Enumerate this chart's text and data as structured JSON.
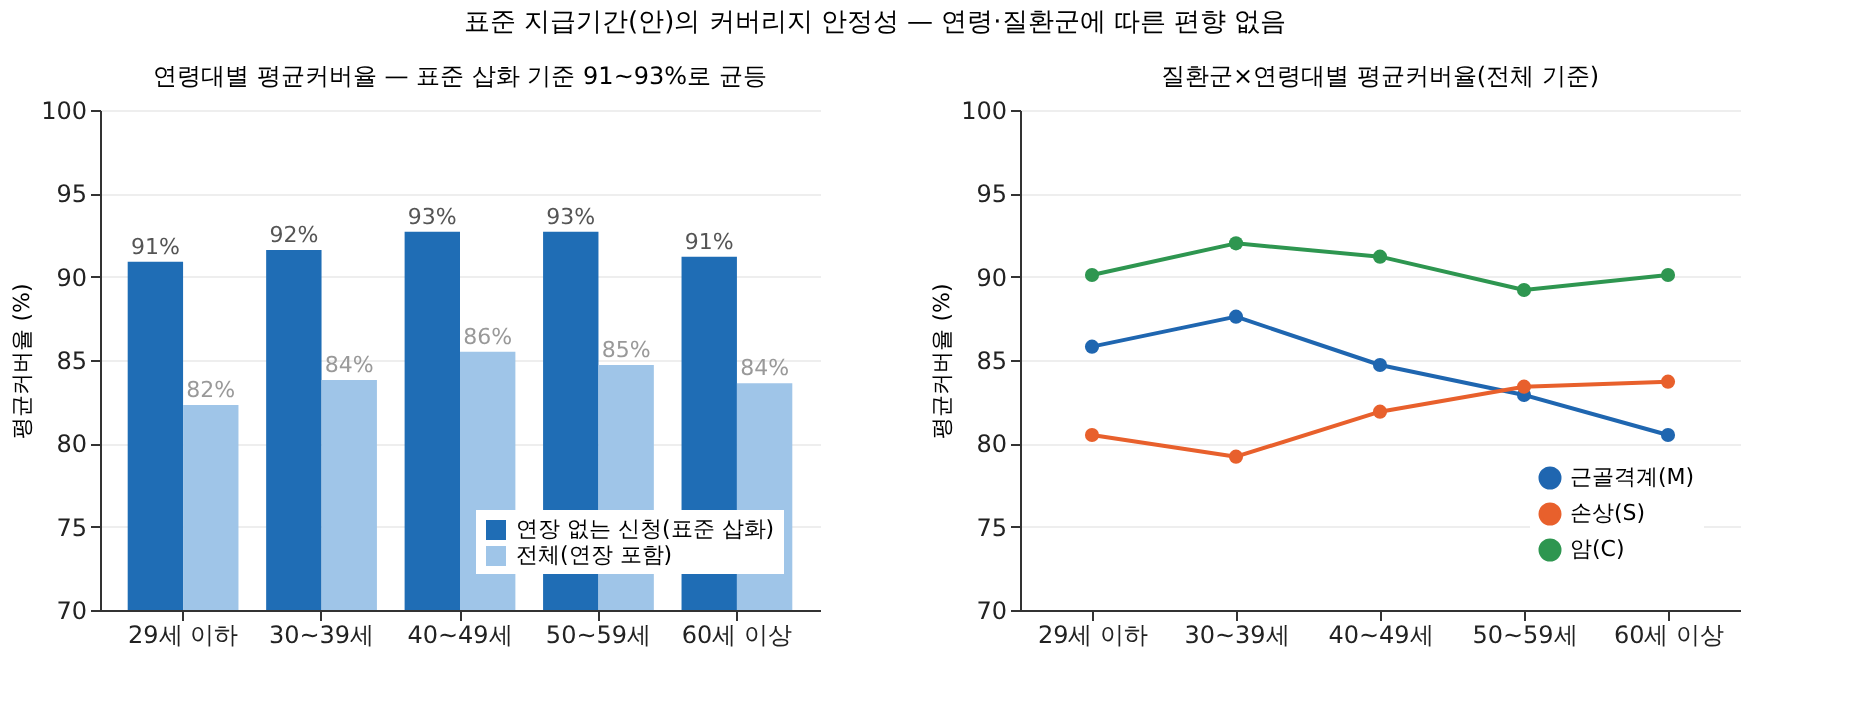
{
  "chart_data": [
    {
      "type": "bar",
      "title": "연령대별 평균커버율 — 표준 삽화 기준 91~93%로 균등",
      "ylabel": "평균커버율 (%)",
      "annotations": [
        "표준 지급기간(안)의 커버리지 안정성 — 연령·질환군에 따른 편향 없음"
      ],
      "categories": [
        "29세 이하",
        "30~39세",
        "40~49세",
        "50~59세",
        "60세 이상"
      ],
      "series": [
        {
          "name": "연장 없는 신청(표준 삽화)",
          "color": "#1f6db5",
          "values": [
            90.9,
            91.6,
            92.7,
            92.7,
            91.2
          ],
          "value_labels": [
            "91%",
            "92%",
            "93%",
            "93%",
            "91%"
          ]
        },
        {
          "name": "전체(연장 포함)",
          "color": "#9fc5e8",
          "values": [
            82.3,
            83.8,
            85.5,
            84.7,
            83.6
          ],
          "value_labels": [
            "82%",
            "84%",
            "86%",
            "85%",
            "84%"
          ]
        }
      ],
      "ylim": [
        70,
        100
      ],
      "yticks": [
        70,
        75,
        80,
        85,
        90,
        95,
        100
      ],
      "grid": "y",
      "legend": "bottom right"
    },
    {
      "type": "line",
      "title": "질환군×연령대별 평균커버율(전체 기준)",
      "ylabel": "평균커버율 (%)",
      "categories": [
        "29세 이하",
        "30~39세",
        "40~49세",
        "50~59세",
        "60세 이상"
      ],
      "series": [
        {
          "name": "근골격계(M)",
          "color": "#1f66b0",
          "values": [
            85.8,
            87.6,
            84.7,
            82.9,
            80.5
          ]
        },
        {
          "name": "손상(S)",
          "color": "#e8602c",
          "values": [
            80.5,
            79.2,
            81.9,
            83.4,
            83.7
          ]
        },
        {
          "name": "암(C)",
          "color": "#2e9650",
          "values": [
            90.1,
            92.0,
            91.2,
            89.2,
            90.1
          ]
        }
      ],
      "ylim": [
        70,
        100
      ],
      "yticks": [
        70,
        75,
        80,
        85,
        90,
        95,
        100
      ],
      "grid": "y",
      "legend": "bottom right",
      "marker": "circle",
      "line_style": "solid"
    }
  ]
}
